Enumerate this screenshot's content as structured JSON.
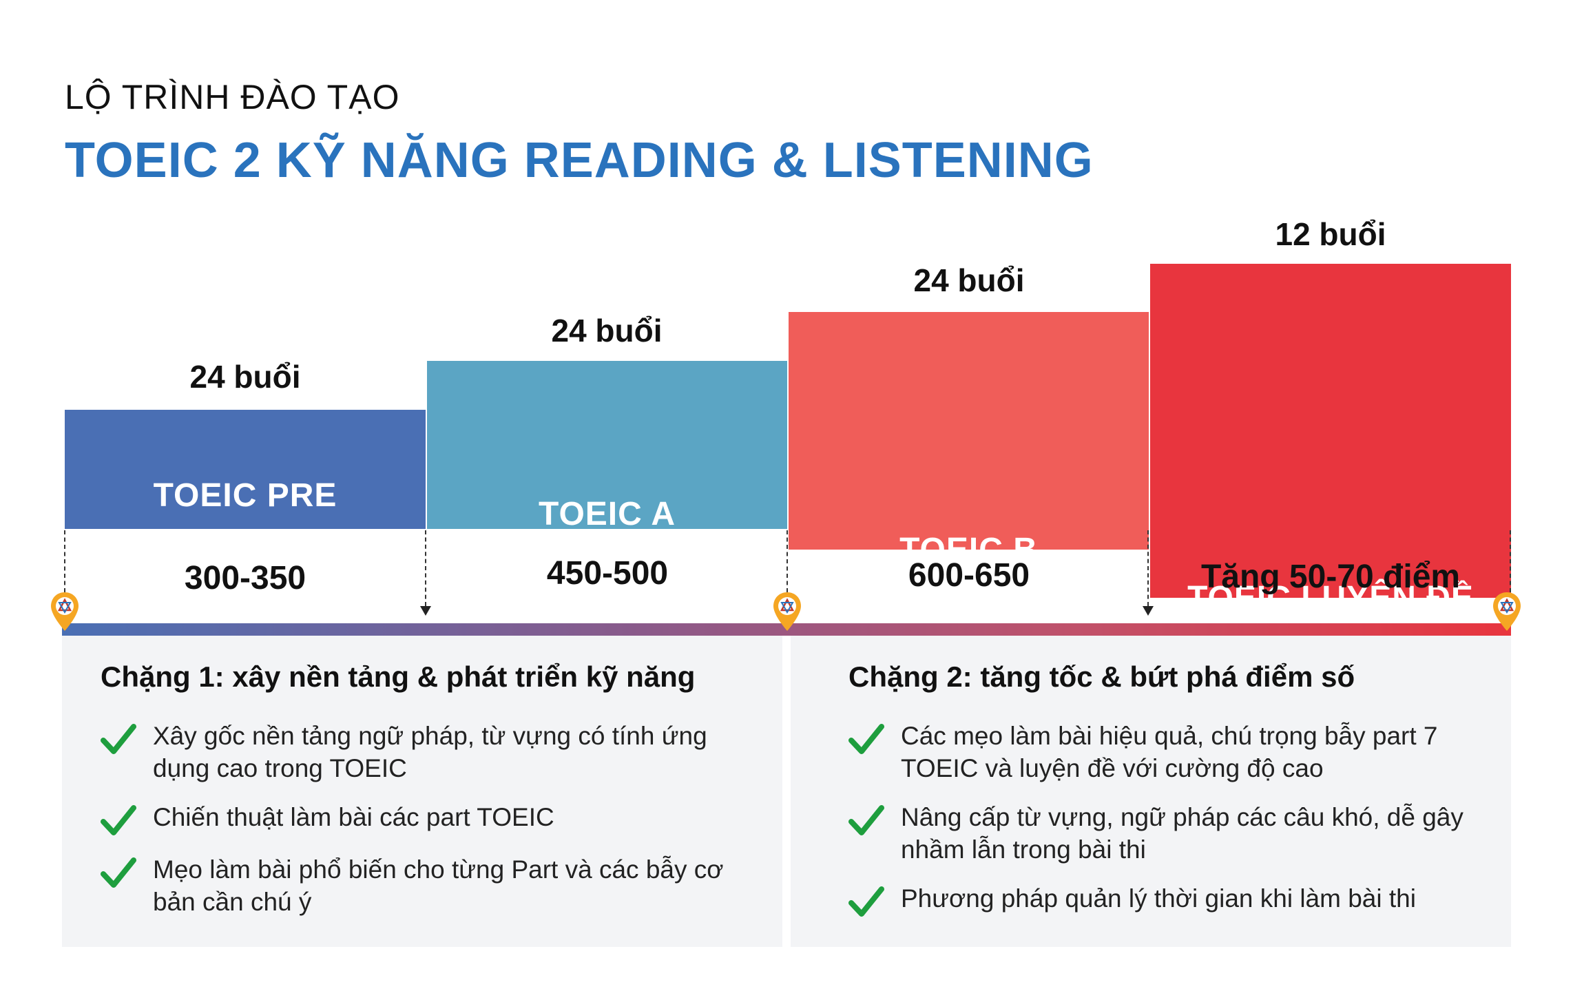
{
  "header": {
    "subtitle": "LỘ TRÌNH ĐÀO TẠO",
    "title": "TOEIC 2 KỸ NĂNG READING & LISTENING"
  },
  "stages": [
    {
      "name": "TOEIC PRE",
      "sessions": "24 buổi",
      "score": "300-350",
      "color": "#4a6fb4"
    },
    {
      "name": "TOEIC A",
      "sessions": "24 buổi",
      "score": "450-500",
      "color": "#5ba5c4"
    },
    {
      "name": "TOEIC B",
      "sessions": "24 buổi",
      "score": "600-650",
      "color": "#f05d59"
    },
    {
      "name": "TOEIC LUYỆN ĐỀ",
      "sessions": "12 buổi",
      "score": "Tăng 50-70 điểm",
      "color": "#e8353e"
    }
  ],
  "phases": [
    {
      "title": "Chặng 1: xây nền tảng & phát triển kỹ năng",
      "items": [
        "Xây gốc nền tảng ngữ pháp, từ vựng có tính ứng dụng cao trong TOEIC",
        "Chiến thuật làm bài các part TOEIC",
        "Mẹo làm bài phổ biến cho từng Part và các bẫy cơ bản cần chú ý"
      ]
    },
    {
      "title": "Chặng 2: tăng tốc & bứt phá điểm số",
      "items": [
        "Các mẹo làm bài hiệu quả, chú trọng bẫy part 7 TOEIC và luyện đề với cường độ cao",
        "Nâng cấp từ vựng, ngữ pháp các câu khó, dễ gây nhầm lẫn trong bài thi",
        "Phương pháp quản lý thời gian khi làm bài thi"
      ]
    }
  ],
  "icons": {
    "milestone": "location-pin-icon",
    "check": "checkmark-icon"
  },
  "colors": {
    "title_blue": "#2a73bd",
    "check_green": "#1e9e3e",
    "pin_orange": "#f5a623"
  }
}
